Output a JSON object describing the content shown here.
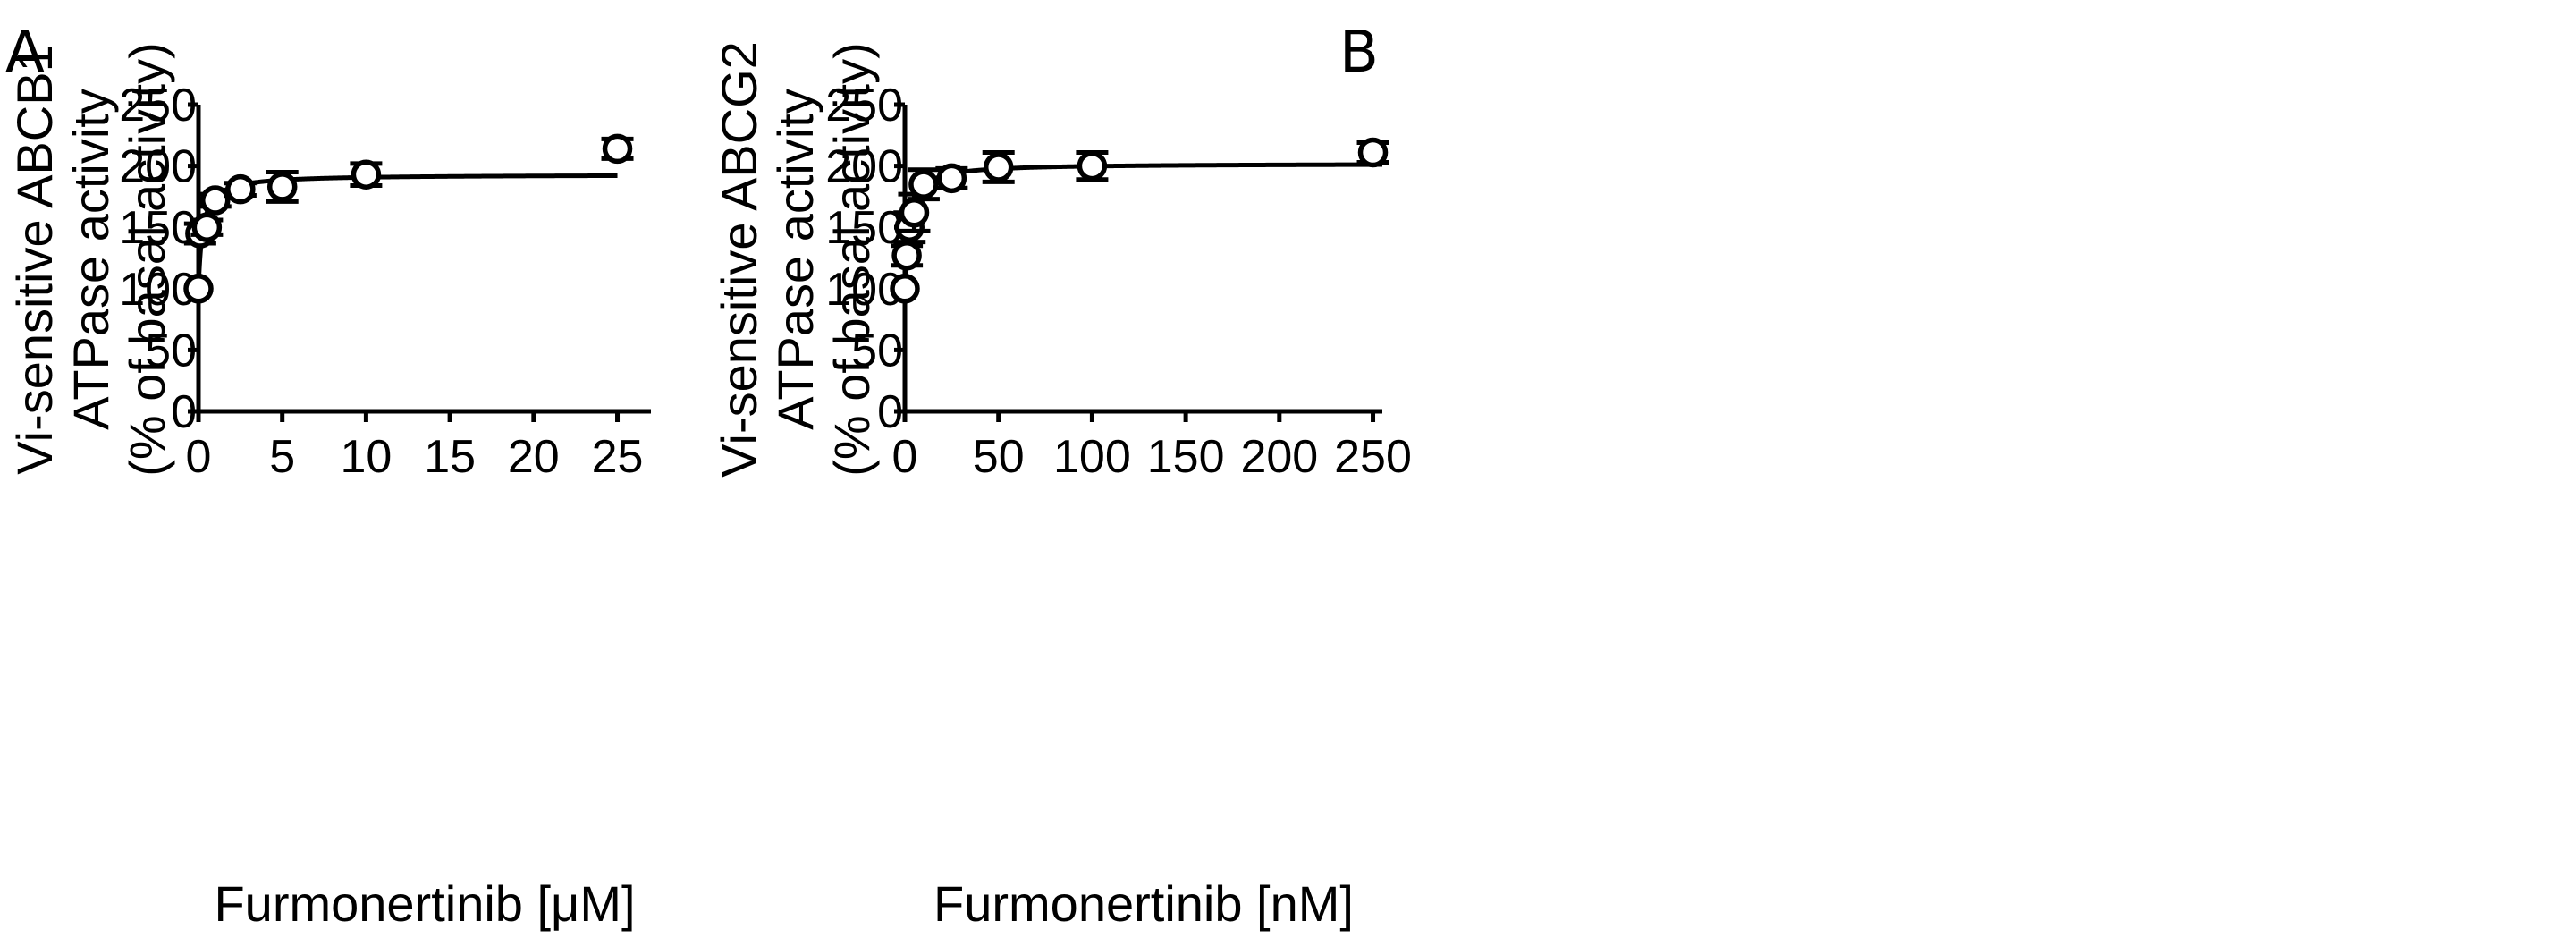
{
  "chart_data": [
    {
      "panel_label": "A",
      "type": "scatter",
      "xlabel": "Furmonertinib [μM]",
      "ylabel_lines": [
        "Vi-sensitive ABCB1",
        "ATPase activity",
        "(% of basal activity)"
      ],
      "xlim": [
        0,
        27
      ],
      "ylim": [
        0,
        250
      ],
      "xticks": [
        0,
        5,
        10,
        15,
        20,
        25
      ],
      "yticks": [
        0,
        50,
        100,
        150,
        200,
        250
      ],
      "points": [
        {
          "x": 0,
          "y": 100,
          "err": 0
        },
        {
          "x": 0.1,
          "y": 145,
          "err": 8
        },
        {
          "x": 0.5,
          "y": 150,
          "err": 6
        },
        {
          "x": 1,
          "y": 172,
          "err": 5
        },
        {
          "x": 2.5,
          "y": 181,
          "err": 5
        },
        {
          "x": 5,
          "y": 183,
          "err": 12
        },
        {
          "x": 10,
          "y": 193,
          "err": 9
        },
        {
          "x": 25,
          "y": 214,
          "err": 8
        }
      ],
      "fit": {
        "model": "hyperbolic",
        "bottom": 100,
        "top": 193,
        "ec50": 0.25,
        "x_max": 25
      }
    },
    {
      "panel_label": "B",
      "type": "scatter",
      "xlabel": "Furmonertinib [nM]",
      "ylabel_lines": [
        "Vi-sensitive ABCG2",
        "ATPase activity",
        "(% of basal activity)"
      ],
      "xlim": [
        0,
        255
      ],
      "ylim": [
        0,
        250
      ],
      "xticks": [
        0,
        50,
        100,
        150,
        200,
        250
      ],
      "yticks": [
        0,
        50,
        100,
        150,
        200,
        250
      ],
      "points": [
        {
          "x": 0,
          "y": 100,
          "err": 0
        },
        {
          "x": 1,
          "y": 127,
          "err": 8
        },
        {
          "x": 2.5,
          "y": 150,
          "err": 12
        },
        {
          "x": 5,
          "y": 162,
          "err": 15
        },
        {
          "x": 10,
          "y": 185,
          "err": 12
        },
        {
          "x": 25,
          "y": 190,
          "err": 8
        },
        {
          "x": 50,
          "y": 199,
          "err": 12
        },
        {
          "x": 100,
          "y": 200,
          "err": 11
        },
        {
          "x": 250,
          "y": 211,
          "err": 8
        }
      ],
      "fit": {
        "model": "hyperbolic",
        "bottom": 100,
        "top": 202,
        "ec50": 2.2,
        "x_max": 255
      }
    }
  ]
}
